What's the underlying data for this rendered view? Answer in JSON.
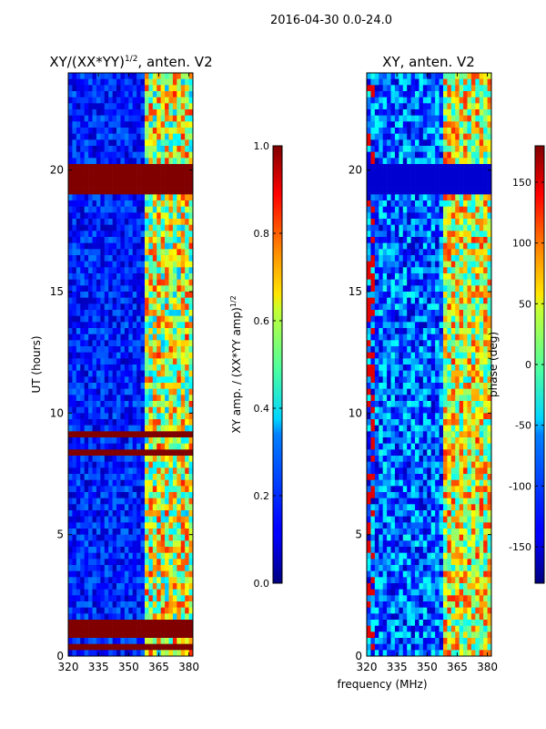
{
  "figure": {
    "suptitle": "2016-04-30 0.0-24.0",
    "shared_xlabel": "frequency (MHz)"
  },
  "chart_data": [
    {
      "type": "heatmap",
      "title_main": "XY/(XX*YY)",
      "title_sup": "1/2",
      "title_tail": ", anten. V2",
      "xlabel": "",
      "ylabel": "UT (hours)",
      "xlim": [
        320,
        382
      ],
      "ylim": [
        0,
        24
      ],
      "x_ticks": [
        320,
        335,
        350,
        365,
        380
      ],
      "y_ticks": [
        0,
        5,
        10,
        15,
        20
      ],
      "colorbar": {
        "label_main": "XY amp. / (XX*YY amp)",
        "label_sup": "1/2",
        "range": [
          0.0,
          1.0
        ],
        "ticks": [
          "0.0",
          "0.2",
          "0.4",
          "0.6",
          "0.8",
          "1.0"
        ],
        "colormap": "jet"
      },
      "bands": [
        {
          "name": "low",
          "x_range": [
            320,
            359
          ],
          "typical_value": 0.12
        },
        {
          "name": "high",
          "x_range": [
            359,
            382
          ],
          "typical_value": 0.5
        }
      ],
      "saturated_rows_hours": [
        19.3,
        19.5,
        19.7,
        19.9,
        20.1,
        20.3,
        9.2,
        9.3,
        8.6,
        1.5,
        1.2,
        0.9,
        0.4
      ]
    },
    {
      "type": "heatmap",
      "title_main": "XY, anten. V2",
      "xlabel": "",
      "ylabel": "",
      "xlim": [
        320,
        382
      ],
      "ylim": [
        0,
        24
      ],
      "x_ticks": [
        320,
        335,
        350,
        365,
        380
      ],
      "y_ticks": [
        0,
        5,
        10,
        15,
        20
      ],
      "colorbar": {
        "label_main": "phase (deg)",
        "range": [
          -180,
          180
        ],
        "ticks": [
          "-150",
          "-100",
          "-50",
          "0",
          "50",
          "100",
          "150"
        ],
        "colormap": "jet"
      },
      "bands": [
        {
          "name": "low",
          "x_range": [
            320,
            359
          ],
          "typical_value": -150
        },
        {
          "name": "high",
          "x_range": [
            359,
            382
          ],
          "typical_value": 20
        }
      ],
      "uniform_rows_hours": [
        19.3,
        19.5,
        19.7,
        19.9,
        20.1,
        20.3
      ]
    }
  ]
}
